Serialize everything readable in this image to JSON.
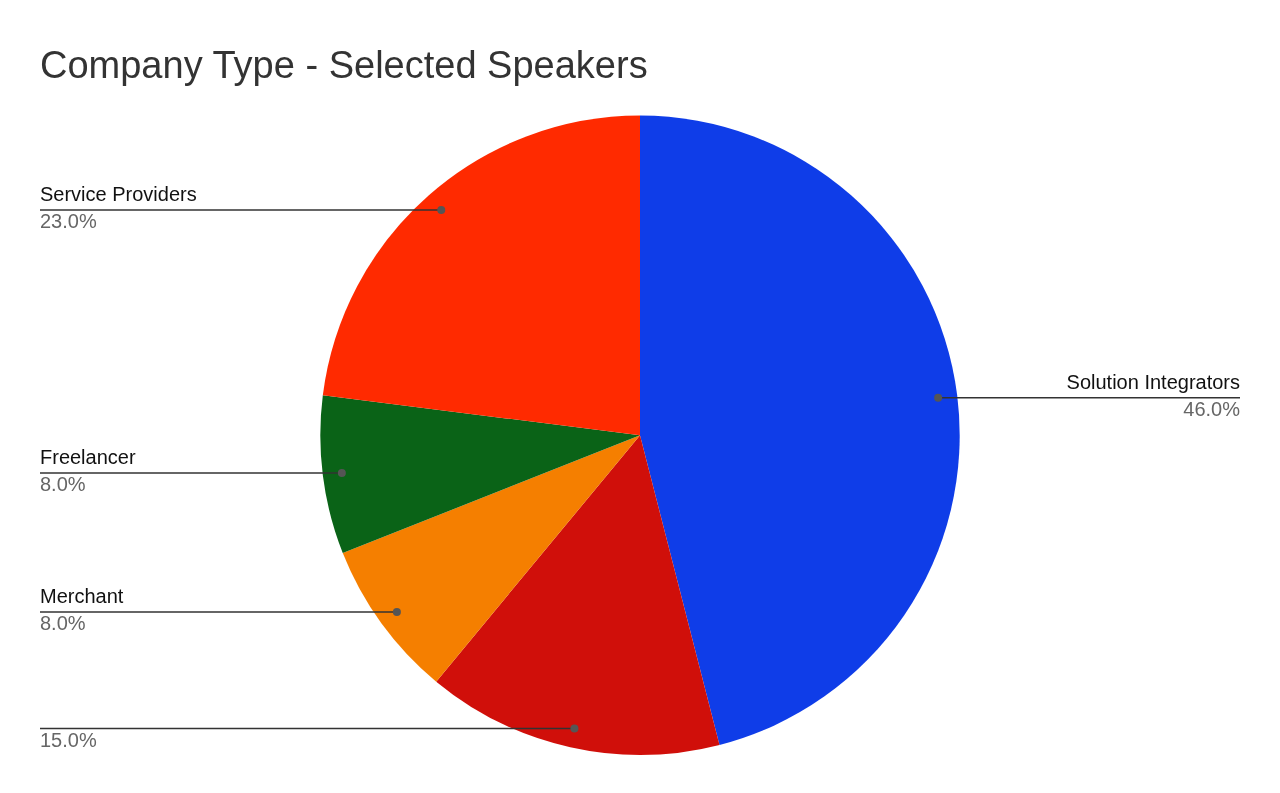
{
  "chart_data": {
    "type": "pie",
    "title": "Company Type - Selected Speakers",
    "categories": [
      "Solution Integrators",
      null,
      "Merchant",
      "Freelancer",
      "Service Providers"
    ],
    "values": [
      46,
      15,
      8,
      8,
      23
    ],
    "colors": [
      "#0f3de8",
      "#d00f0a",
      "#f57f00",
      "#0a6317",
      "#ff2a00"
    ],
    "value_labels": [
      "46.0%",
      "15.0%",
      "8.0%",
      "8.0%",
      "23.0%"
    ],
    "legend": false
  }
}
